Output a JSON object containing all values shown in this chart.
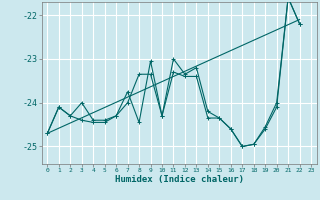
{
  "xlabel": "Humidex (Indice chaleur)",
  "bg_color": "#cce8ee",
  "grid_color": "#ffffff",
  "line_color": "#006666",
  "x_values": [
    0,
    1,
    2,
    3,
    4,
    5,
    6,
    7,
    8,
    9,
    10,
    11,
    12,
    13,
    14,
    15,
    16,
    17,
    18,
    19,
    20,
    21,
    22,
    23
  ],
  "y_main": [
    -24.7,
    -24.1,
    -24.3,
    -24.4,
    -24.45,
    -24.45,
    -24.3,
    -23.75,
    -24.45,
    -23.05,
    -24.3,
    -23.0,
    -23.35,
    -23.2,
    -24.2,
    -24.35,
    -24.6,
    -25.0,
    -24.95,
    -24.55,
    -24.0,
    -21.6,
    -22.2,
    null
  ],
  "y_second": [
    -24.7,
    -24.1,
    -24.3,
    -24.0,
    -24.4,
    -24.4,
    -24.3,
    -24.0,
    -23.35,
    -23.35,
    -24.3,
    -23.3,
    -23.4,
    -23.4,
    -24.35,
    -24.35,
    -24.6,
    -25.0,
    -24.95,
    -24.6,
    -24.1,
    -21.6,
    -22.2,
    null
  ],
  "trend_x": [
    0,
    22
  ],
  "trend_y": [
    -24.7,
    -22.1
  ],
  "ylim": [
    -25.4,
    -21.7
  ],
  "xlim": [
    -0.5,
    23.5
  ],
  "yticks": [
    -25,
    -24,
    -23,
    -22
  ],
  "ytick_labels": [
    "-25",
    "-24",
    "-23",
    "-22"
  ]
}
